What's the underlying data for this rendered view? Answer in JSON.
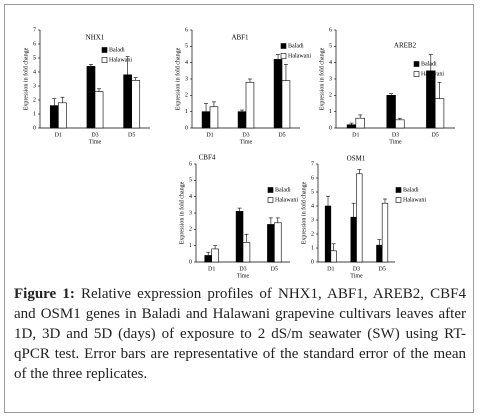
{
  "chart_data": [
    {
      "type": "bar",
      "title": "NHX1",
      "x_label": "Time",
      "y_label": "Expression in fold change",
      "categories": [
        "D1",
        "D3",
        "D5"
      ],
      "ylim": [
        0,
        7
      ],
      "yticks": [
        0,
        1,
        2,
        3,
        4,
        5,
        6,
        7
      ],
      "series": [
        {
          "name": "Baladi",
          "color": "#000000",
          "values": [
            1.6,
            4.4,
            3.8
          ],
          "errors": [
            0.5,
            0.15,
            1.3
          ]
        },
        {
          "name": "Halawani",
          "color": "#ffffff",
          "values": [
            1.8,
            2.6,
            3.4
          ],
          "errors": [
            0.4,
            0.2,
            0.2
          ]
        }
      ]
    },
    {
      "type": "bar",
      "title": "ABF1",
      "x_label": "Time",
      "y_label": "Expression in fold change",
      "categories": [
        "D1",
        "D3",
        "D5"
      ],
      "ylim": [
        0,
        6
      ],
      "yticks": [
        0,
        1,
        2,
        3,
        4,
        5,
        6
      ],
      "series": [
        {
          "name": "Baladi",
          "color": "#000000",
          "values": [
            1.0,
            1.0,
            4.2
          ],
          "errors": [
            0.5,
            0.1,
            0.3
          ]
        },
        {
          "name": "Halawani",
          "color": "#ffffff",
          "values": [
            1.3,
            2.8,
            2.9
          ],
          "errors": [
            0.3,
            0.2,
            1.0
          ]
        }
      ]
    },
    {
      "type": "bar",
      "title": "AREB2",
      "x_label": "Time",
      "y_label": "Expression in fold change",
      "categories": [
        "D1",
        "D3",
        "D5"
      ],
      "ylim": [
        0,
        6
      ],
      "yticks": [
        0,
        1,
        2,
        3,
        4,
        5,
        6
      ],
      "series": [
        {
          "name": "Baladi",
          "color": "#000000",
          "values": [
            0.2,
            2.0,
            3.5
          ],
          "errors": [
            0.1,
            0.1,
            1.0
          ]
        },
        {
          "name": "Halawani",
          "color": "#ffffff",
          "values": [
            0.6,
            0.5,
            1.8
          ],
          "errors": [
            0.2,
            0.1,
            1.0
          ]
        }
      ]
    },
    {
      "type": "bar",
      "title": "CBF4",
      "x_label": "Time",
      "y_label": "Expression in fold change",
      "categories": [
        "D1",
        "D3",
        "D5"
      ],
      "ylim": [
        0,
        6
      ],
      "yticks": [
        0,
        1,
        2,
        3,
        4,
        5,
        6
      ],
      "series": [
        {
          "name": "Baladi",
          "color": "#000000",
          "values": [
            0.4,
            3.1,
            2.3
          ],
          "errors": [
            0.2,
            0.2,
            0.4
          ]
        },
        {
          "name": "Halawani",
          "color": "#ffffff",
          "values": [
            0.8,
            1.2,
            2.4
          ],
          "errors": [
            0.2,
            0.5,
            0.3
          ]
        }
      ]
    },
    {
      "type": "bar",
      "title": "OSM1",
      "x_label": "Time",
      "y_label": "Expression in fold change",
      "categories": [
        "D1",
        "D3",
        "D5"
      ],
      "ylim": [
        0,
        7
      ],
      "yticks": [
        0,
        1,
        2,
        3,
        4,
        5,
        6,
        7
      ],
      "series": [
        {
          "name": "Baladi",
          "color": "#000000",
          "values": [
            4.0,
            3.2,
            1.2
          ],
          "errors": [
            0.7,
            1.0,
            0.4
          ]
        },
        {
          "name": "Halawani",
          "color": "#ffffff",
          "values": [
            0.8,
            6.3,
            4.2
          ],
          "errors": [
            0.5,
            0.3,
            0.3
          ]
        }
      ]
    }
  ],
  "caption": {
    "label": "Figure 1:",
    "text": "Relative expression profiles of NHX1, ABF1, AREB2, CBF4 and OSM1 genes in Baladi and Halawani grapevine cultivars leaves after 1D, 3D and 5D (days) of exposure to 2 dS/m seawater (SW) using RT-qPCR test. Error bars are representative of the standard error of the mean of the three replicates."
  }
}
